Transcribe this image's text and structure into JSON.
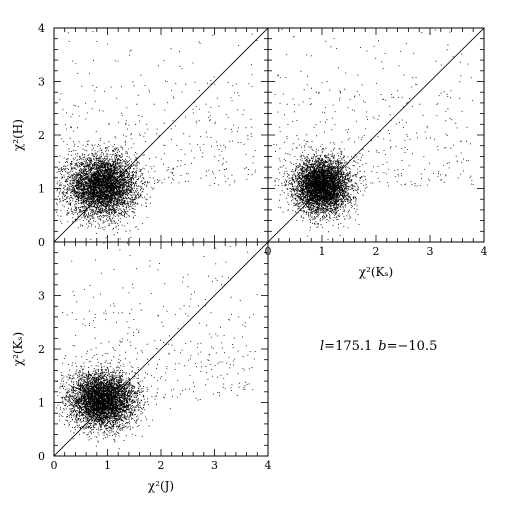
{
  "chart_data": [
    {
      "type": "scatter",
      "panel": "top-left",
      "xlabel": "",
      "ylabel": "χ²(H)",
      "xlim": [
        0,
        4
      ],
      "ylim": [
        0,
        4
      ],
      "x_ticks": [],
      "y_ticks": [
        "0",
        "1",
        "2",
        "3",
        "4"
      ],
      "reference_line": "y = x",
      "cluster": {
        "x_center": 0.9,
        "y_center": 1.05,
        "x_spread": 0.32,
        "y_spread": 0.28
      }
    },
    {
      "type": "scatter",
      "panel": "top-right",
      "xlabel": "χ²(Kₛ)",
      "ylabel": "",
      "xlim": [
        0,
        4
      ],
      "ylim": [
        0,
        4
      ],
      "x_ticks": [
        "0",
        "1",
        "2",
        "3",
        "4"
      ],
      "y_ticks": [],
      "reference_line": "y = x",
      "cluster": {
        "x_center": 1.0,
        "y_center": 1.05,
        "x_spread": 0.25,
        "y_spread": 0.25
      }
    },
    {
      "type": "scatter",
      "panel": "bottom-left",
      "xlabel": "χ²(J)",
      "ylabel": "χ²(Kₛ)",
      "xlim": [
        0,
        4
      ],
      "ylim": [
        0,
        4
      ],
      "x_ticks": [
        "0",
        "1",
        "2",
        "3",
        "4"
      ],
      "y_ticks": [
        "0",
        "1",
        "2",
        "3"
      ],
      "reference_line": "y = x",
      "cluster": {
        "x_center": 0.9,
        "y_center": 1.05,
        "x_spread": 0.3,
        "y_spread": 0.25
      }
    }
  ],
  "annotation": {
    "l_symbol": "l",
    "l_value": "=175.1",
    "b_symbol": "b",
    "b_value": "=−10.5"
  }
}
